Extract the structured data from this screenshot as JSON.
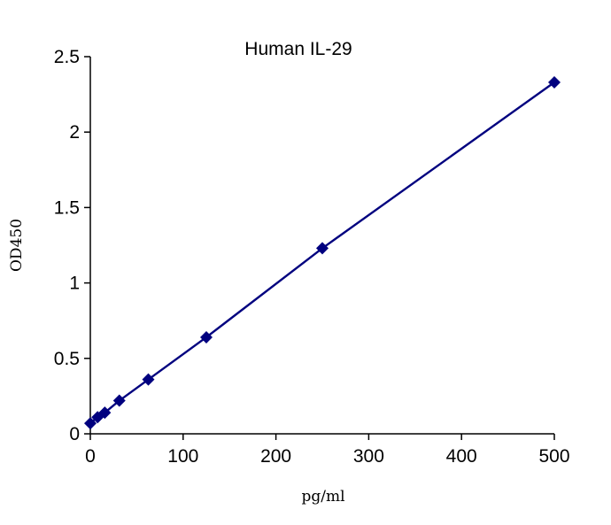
{
  "chart_data": {
    "type": "scatter",
    "title": "Human IL-29",
    "xlabel": "pg/ml",
    "ylabel": "OD450",
    "xlim": [
      0,
      500
    ],
    "ylim": [
      0,
      2.5
    ],
    "x_ticks": [
      "0",
      "100",
      "200",
      "300",
      "400",
      "500"
    ],
    "y_ticks": [
      "0",
      "0.5",
      "1",
      "1.5",
      "2",
      "2.5"
    ],
    "x_tick_values": [
      0,
      100,
      200,
      300,
      400,
      500
    ],
    "y_tick_values": [
      0,
      0.5,
      1,
      1.5,
      2,
      2.5
    ],
    "grid": false,
    "legend": "none",
    "series": [
      {
        "marker": "diamond",
        "fit_line": true,
        "color": "#00007f",
        "x": [
          0,
          7.8,
          15.6,
          31.25,
          62.5,
          125,
          250,
          500
        ],
        "y": [
          0.07,
          0.11,
          0.14,
          0.22,
          0.36,
          0.64,
          1.23,
          2.33
        ]
      }
    ]
  }
}
